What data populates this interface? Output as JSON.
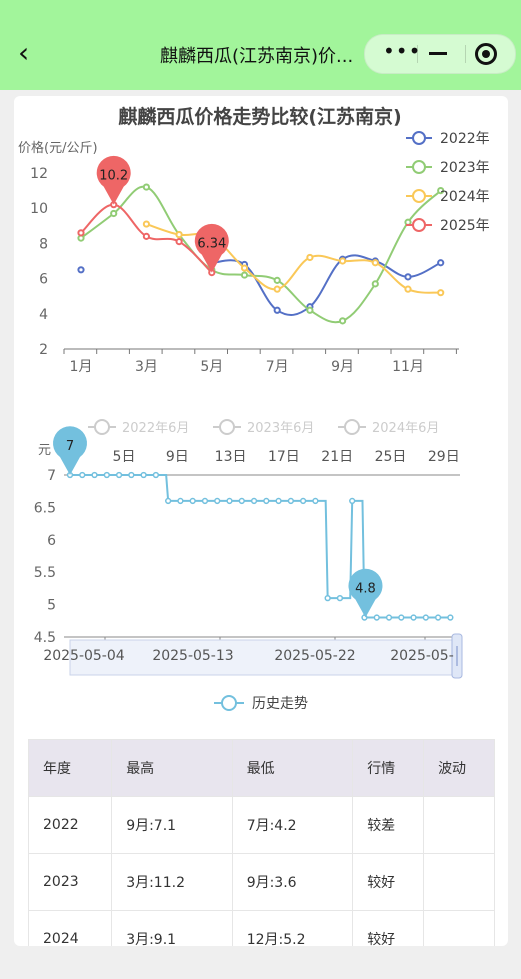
{
  "nav": {
    "title": "麒麟西瓜(江苏南京)价...",
    "back_icon": "chevron-left-icon"
  },
  "colors": {
    "y2022": "#5470c6",
    "y2023": "#91cc75",
    "y2024": "#fac858",
    "y2025": "#ee6666",
    "history": "#73c0de"
  },
  "chart_data": [
    {
      "type": "line",
      "title": "麒麟西瓜价格走势比较(江苏南京)",
      "ylabel": "价格(元/公斤)",
      "ylim": [
        2,
        12
      ],
      "yticks": [
        "2",
        "4",
        "6",
        "8",
        "10",
        "12"
      ],
      "categories": [
        "1月",
        "2月",
        "3月",
        "4月",
        "5月",
        "6月",
        "7月",
        "8月",
        "9月",
        "10月",
        "11月",
        "12月"
      ],
      "xtick_labels": [
        "1月",
        "3月",
        "5月",
        "7月",
        "9月",
        "11月"
      ],
      "legend_position": "top-right",
      "series": [
        {
          "name": "2022年",
          "values": [
            6.5,
            null,
            null,
            null,
            6.9,
            6.8,
            4.2,
            4.4,
            7.1,
            7.0,
            6.1,
            6.9
          ]
        },
        {
          "name": "2023年",
          "values": [
            8.3,
            9.7,
            11.2,
            8.5,
            6.5,
            6.2,
            5.9,
            4.2,
            3.6,
            5.7,
            9.2,
            11.0
          ]
        },
        {
          "name": "2024年",
          "values": [
            null,
            null,
            9.1,
            8.5,
            8.4,
            6.6,
            5.4,
            7.2,
            7.0,
            6.9,
            5.4,
            5.2
          ]
        },
        {
          "name": "2025年",
          "values": [
            8.6,
            10.2,
            8.4,
            8.1,
            6.34,
            null,
            null,
            null,
            null,
            null,
            null,
            null
          ]
        }
      ],
      "markers": [
        {
          "series": "2025年",
          "month": "2月",
          "label": "10.2"
        },
        {
          "series": "2025年",
          "month": "5月",
          "label": "6.34"
        }
      ]
    },
    {
      "type": "line",
      "ylabel": "元",
      "ylim": [
        4.5,
        7
      ],
      "yticks": [
        "4.5",
        "5",
        "5.5",
        "6",
        "6.5",
        "7"
      ],
      "top_day_labels": [
        "5日",
        "9日",
        "13日",
        "17日",
        "21日",
        "25日",
        "29日"
      ],
      "legend_muted": [
        "2022年6月",
        "2023年6月",
        "2024年6月"
      ],
      "date_labels": [
        "2025-05-04",
        "2025-05-13",
        "2025-05-22",
        "2025-05-"
      ],
      "series": [
        {
          "name": "历史走势",
          "values": [
            7,
            7,
            7,
            7,
            7,
            7,
            7,
            7,
            6.6,
            6.6,
            6.6,
            6.6,
            6.6,
            6.6,
            6.6,
            6.6,
            6.6,
            6.6,
            6.6,
            6.6,
            6.6,
            5.1,
            5.1,
            6.6,
            4.8,
            4.8,
            4.8,
            4.8,
            4.8,
            4.8,
            4.8,
            4.8
          ]
        }
      ],
      "markers": [
        {
          "label": "7"
        },
        {
          "label": "4.8"
        }
      ]
    }
  ],
  "table": {
    "headers": [
      "年度",
      "最高",
      "最低",
      "行情",
      "波动"
    ],
    "rows": [
      [
        "2022",
        "9月:7.1",
        "7月:4.2",
        "较差",
        ""
      ],
      [
        "2023",
        "3月:11.2",
        "9月:3.6",
        "较好",
        ""
      ],
      [
        "2024",
        "3月:9.1",
        "12月:5.2",
        "较好",
        ""
      ]
    ]
  }
}
